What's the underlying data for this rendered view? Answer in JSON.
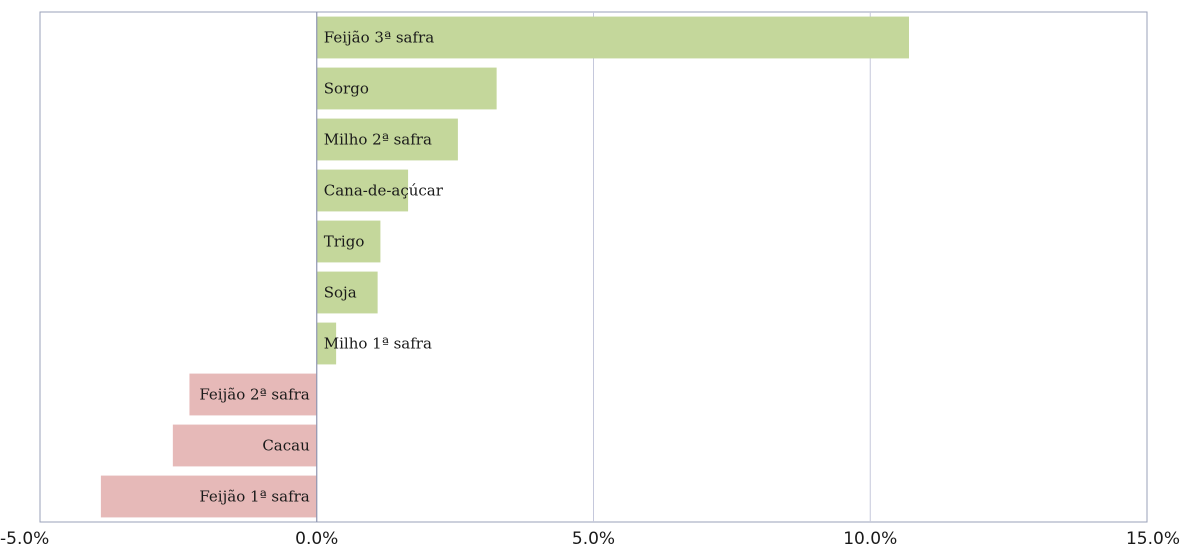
{
  "chart_data": {
    "type": "bar",
    "orientation": "horizontal",
    "categories": [
      "Feijão 3ª safra",
      "Sorgo",
      "Milho 2ª safra",
      "Cana-de-açúcar",
      "Trigo",
      "Soja",
      "Milho 1ª safra",
      "Feijão 2ª safra",
      "Cacau",
      "Feijão 1ª safra"
    ],
    "values": [
      10.7,
      3.25,
      2.55,
      1.65,
      1.15,
      1.1,
      0.35,
      -2.3,
      -2.6,
      -3.9
    ],
    "xlim": [
      -5,
      15
    ],
    "xticks": [
      -5,
      0,
      5,
      10,
      15
    ],
    "xtick_labels": [
      "-5.0%",
      "0.0%",
      "5.0%",
      "10.0%",
      "15.0%"
    ],
    "title": "",
    "xlabel": "",
    "ylabel": "",
    "grid": "vertical",
    "legend": "none",
    "colors": {
      "positive": "#c4d79b",
      "negative": "#e6b9b8",
      "gridline": "#c5c8dc",
      "frame": "#9aa0b8",
      "zero_axis": "#8e94b0"
    }
  }
}
